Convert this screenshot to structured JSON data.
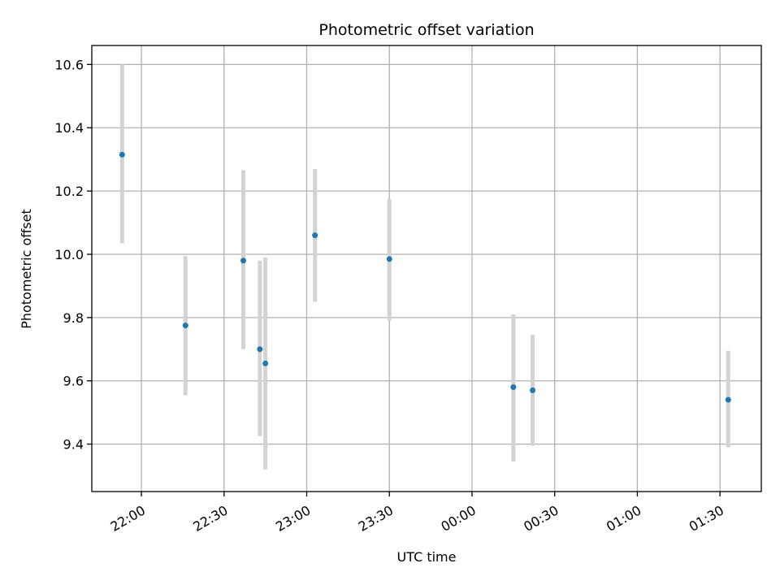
{
  "chart_data": {
    "type": "scatter",
    "title": "Photometric offset variation",
    "xlabel": "UTC time",
    "ylabel": "Photometric offset",
    "x_is_time": true,
    "xlim": [
      "21:42",
      "01:45"
    ],
    "ylim": [
      9.25,
      10.66
    ],
    "x_ticks": [
      "22:00",
      "22:30",
      "23:00",
      "23:30",
      "00:00",
      "00:30",
      "01:00",
      "01:30"
    ],
    "y_ticks": [
      "9.4",
      "9.6",
      "9.8",
      "10.0",
      "10.2",
      "10.4",
      "10.6"
    ],
    "grid": true,
    "colors": {
      "point": "#1f77b4",
      "error_bar": "#d3d3d3"
    },
    "points": [
      {
        "time": "21:53",
        "y": 10.315,
        "y_low": 10.035,
        "y_high": 10.6
      },
      {
        "time": "22:16",
        "y": 9.775,
        "y_low": 9.555,
        "y_high": 9.995
      },
      {
        "time": "22:37",
        "y": 9.98,
        "y_low": 9.7,
        "y_high": 10.265
      },
      {
        "time": "22:43",
        "y": 9.7,
        "y_low": 9.425,
        "y_high": 9.98
      },
      {
        "time": "22:45",
        "y": 9.655,
        "y_low": 9.32,
        "y_high": 9.99
      },
      {
        "time": "23:03",
        "y": 10.06,
        "y_low": 9.85,
        "y_high": 10.27
      },
      {
        "time": "23:30",
        "y": 9.985,
        "y_low": 9.79,
        "y_high": 10.175
      },
      {
        "time": "00:15",
        "y": 9.58,
        "y_low": 9.345,
        "y_high": 9.81
      },
      {
        "time": "00:22",
        "y": 9.57,
        "y_low": 9.395,
        "y_high": 9.745
      },
      {
        "time": "01:33",
        "y": 9.54,
        "y_low": 9.39,
        "y_high": 9.695
      }
    ]
  }
}
